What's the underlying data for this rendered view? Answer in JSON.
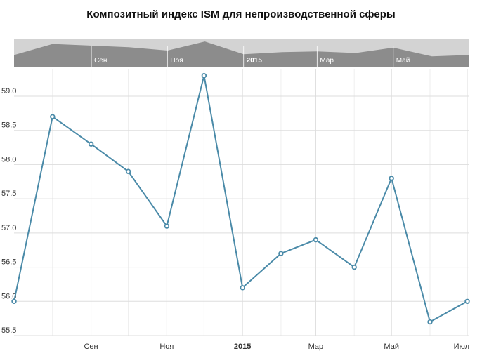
{
  "chart_data": {
    "type": "line",
    "title": "Композитный индекс ISM для непроизводственной сферы",
    "x": [
      "2014-07-01",
      "2014-08-01",
      "2014-09-01",
      "2014-10-01",
      "2014-11-01",
      "2014-12-01",
      "2015-01-01",
      "2015-02-01",
      "2015-03-01",
      "2015-04-01",
      "2015-05-01",
      "2015-06-01",
      "2015-07-01"
    ],
    "series": [
      {
        "values": [
          56.0,
          58.7,
          58.3,
          57.9,
          57.1,
          59.3,
          56.2,
          56.7,
          56.9,
          56.5,
          57.8,
          55.7,
          56.0
        ]
      }
    ],
    "ylim": [
      55.5,
      59.4
    ],
    "yticks": [
      "55.5",
      "56.0",
      "56.5",
      "57.0",
      "57.5",
      "58.0",
      "58.5",
      "59.0"
    ],
    "xticks": [
      {
        "date": "2014-09-01",
        "label": "Сен",
        "bold": false
      },
      {
        "date": "2014-11-01",
        "label": "Ноя",
        "bold": false
      },
      {
        "date": "2015-01-01",
        "label": "2015",
        "bold": true
      },
      {
        "date": "2015-03-01",
        "label": "Мар",
        "bold": false
      },
      {
        "date": "2015-05-01",
        "label": "Май",
        "bold": false
      },
      {
        "date": "2015-07-01",
        "label": "Июл",
        "bold": false
      }
    ],
    "grid": true,
    "legend": "none",
    "navigator": true,
    "colors": {
      "line": "#4a8aa8",
      "grid": "#dddddd",
      "navigator_bg": "#d3d3d3",
      "navigator_fill": "#8c8c8c"
    }
  }
}
